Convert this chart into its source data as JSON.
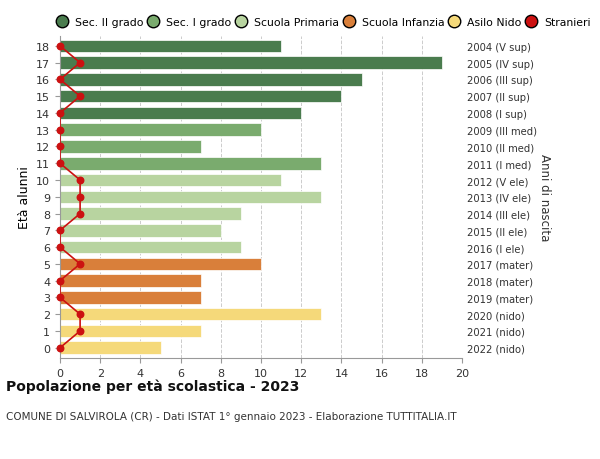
{
  "ages": [
    18,
    17,
    16,
    15,
    14,
    13,
    12,
    11,
    10,
    9,
    8,
    7,
    6,
    5,
    4,
    3,
    2,
    1,
    0
  ],
  "values": [
    11,
    19,
    15,
    14,
    12,
    10,
    7,
    13,
    11,
    13,
    9,
    8,
    9,
    10,
    7,
    7,
    13,
    7,
    5
  ],
  "stranieri": [
    0,
    1,
    0,
    1,
    0,
    0,
    0,
    0,
    1,
    1,
    1,
    0,
    0,
    1,
    0,
    0,
    1,
    1,
    0
  ],
  "right_labels": [
    "2004 (V sup)",
    "2005 (IV sup)",
    "2006 (III sup)",
    "2007 (II sup)",
    "2008 (I sup)",
    "2009 (III med)",
    "2010 (II med)",
    "2011 (I med)",
    "2012 (V ele)",
    "2013 (IV ele)",
    "2014 (III ele)",
    "2015 (II ele)",
    "2016 (I ele)",
    "2017 (mater)",
    "2018 (mater)",
    "2019 (mater)",
    "2020 (nido)",
    "2021 (nido)",
    "2022 (nido)"
  ],
  "bar_colors": [
    "#4a7c4e",
    "#4a7c4e",
    "#4a7c4e",
    "#4a7c4e",
    "#4a7c4e",
    "#7aab6e",
    "#7aab6e",
    "#7aab6e",
    "#b8d4a0",
    "#b8d4a0",
    "#b8d4a0",
    "#b8d4a0",
    "#b8d4a0",
    "#d97f3a",
    "#d97f3a",
    "#d97f3a",
    "#f5d97a",
    "#f5d97a",
    "#f5d97a"
  ],
  "legend_labels": [
    "Sec. II grado",
    "Sec. I grado",
    "Scuola Primaria",
    "Scuola Infanzia",
    "Asilo Nido",
    "Stranieri"
  ],
  "legend_colors": [
    "#4a7c4e",
    "#7aab6e",
    "#b8d4a0",
    "#d97f3a",
    "#f5d97a",
    "#cc1111"
  ],
  "stranieri_color": "#cc1111",
  "title_bold": "Popolazione per età scolastica - 2023",
  "subtitle": "COMUNE DI SALVIROLA (CR) - Dati ISTAT 1° gennaio 2023 - Elaborazione TUTTITALIA.IT",
  "ylabel_left": "Età alunni",
  "ylabel_right": "Anni di nascita",
  "xlim": [
    0,
    20
  ],
  "xticks": [
    0,
    2,
    4,
    6,
    8,
    10,
    12,
    14,
    16,
    18,
    20
  ],
  "background_color": "#ffffff",
  "grid_color": "#cccccc"
}
